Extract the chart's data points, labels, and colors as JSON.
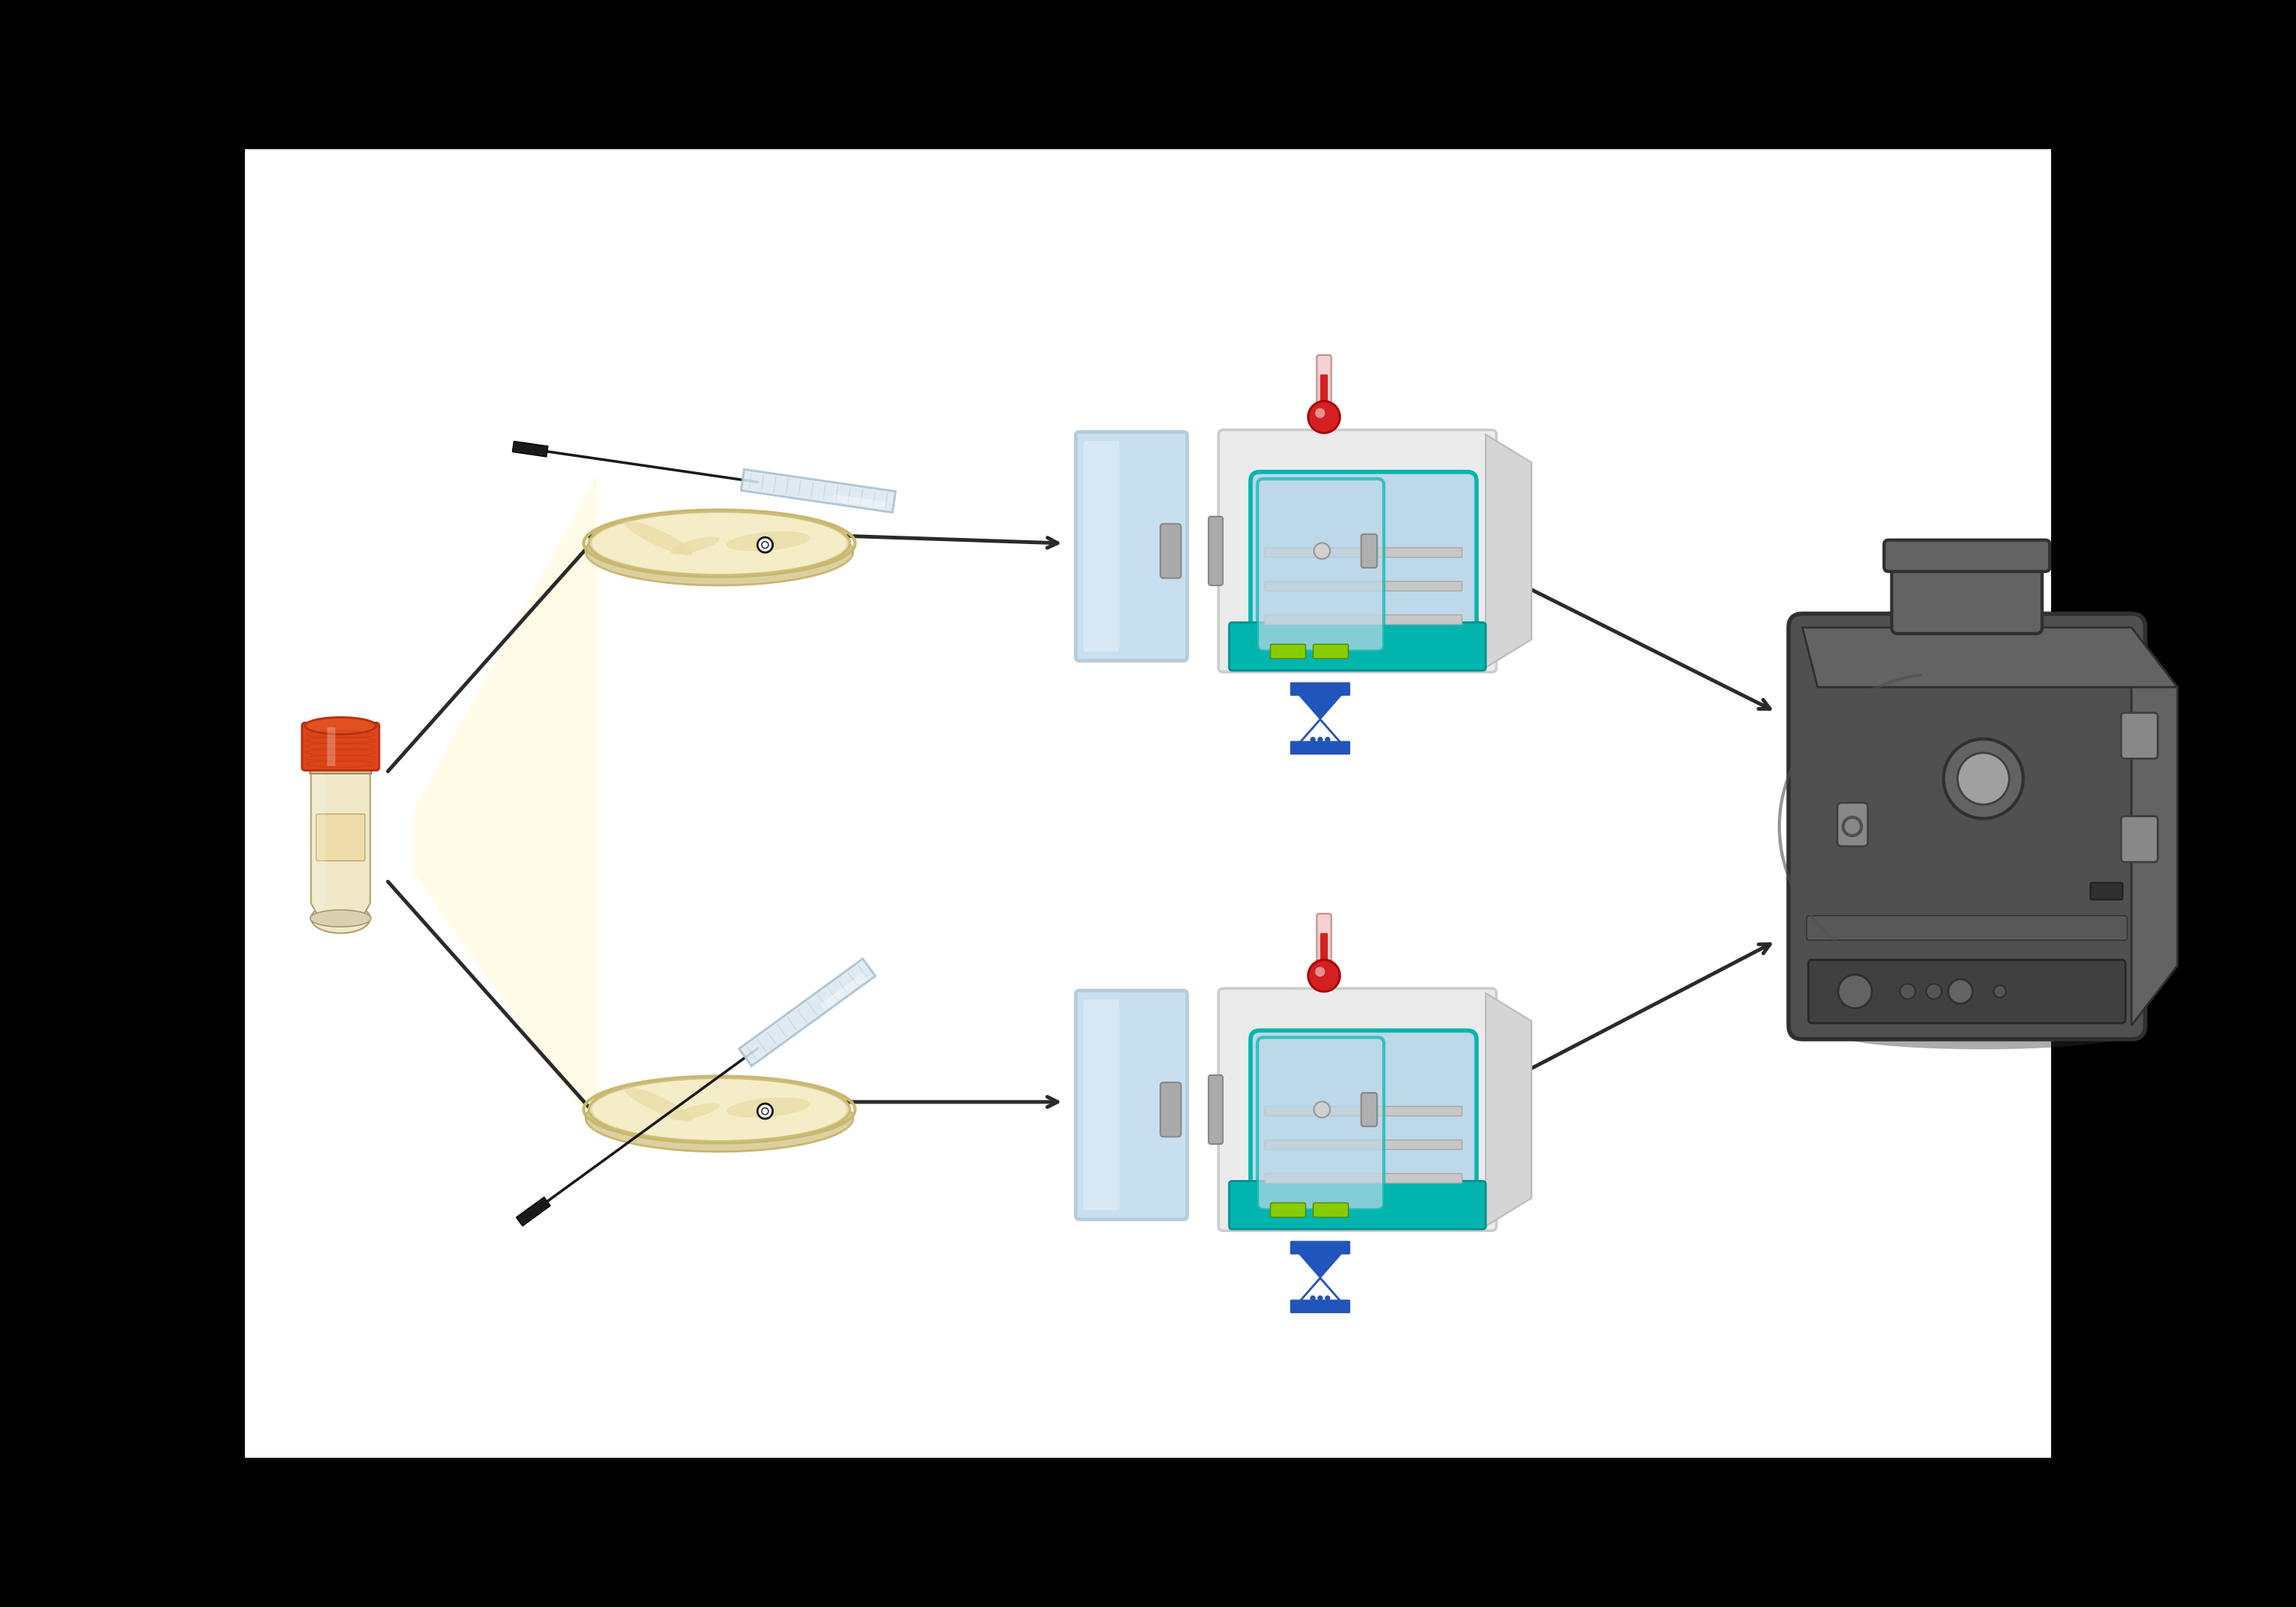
{
  "bg_color": "#000000",
  "white_panel": "#ffffff",
  "arrow_color": "#2a2a2a",
  "incubator_body": "#ebebeb",
  "incubator_side": "#d5d5d5",
  "incubator_inner_glass": "#bdd8e8",
  "incubator_inner_frame": "#00b5ad",
  "incubator_teal": "#00b5ad",
  "incubator_shelf_color": "#c8c8c8",
  "incubator_door_glass": "#c8dff0",
  "incubator_door_frame": "#d5d5d5",
  "incubator_handle": "#aaaaaa",
  "thermometer_red": "#d42020",
  "thermometer_body": "#f5d0d0",
  "hourglass_blue": "#2255bb",
  "hourglass_outline": "#2255bb",
  "tube_cap_orange": "#e04418",
  "tube_body_color": "#f0e8c8",
  "tube_label_color": "#eedcaa",
  "agar_top": "#f5ecc8",
  "agar_rim": "#c8b870",
  "agar_base": "#ddd0a0",
  "agar_swirl1": "#e8daa0",
  "agar_swirl2": "#ddd090",
  "slide_glass": "#dce8f0",
  "slide_edge": "#a8c0d0",
  "inocloop_black": "#1a1a1a",
  "sequencer_dark": "#505050",
  "sequencer_darker": "#404040",
  "sequencer_mid": "#636363",
  "sequencer_light": "#888888",
  "sequencer_lighter": "#a0a0a0",
  "sequencer_stripe": "#585858",
  "yellow_beam": "#fffae0",
  "green_indicator": "#88cc00"
}
